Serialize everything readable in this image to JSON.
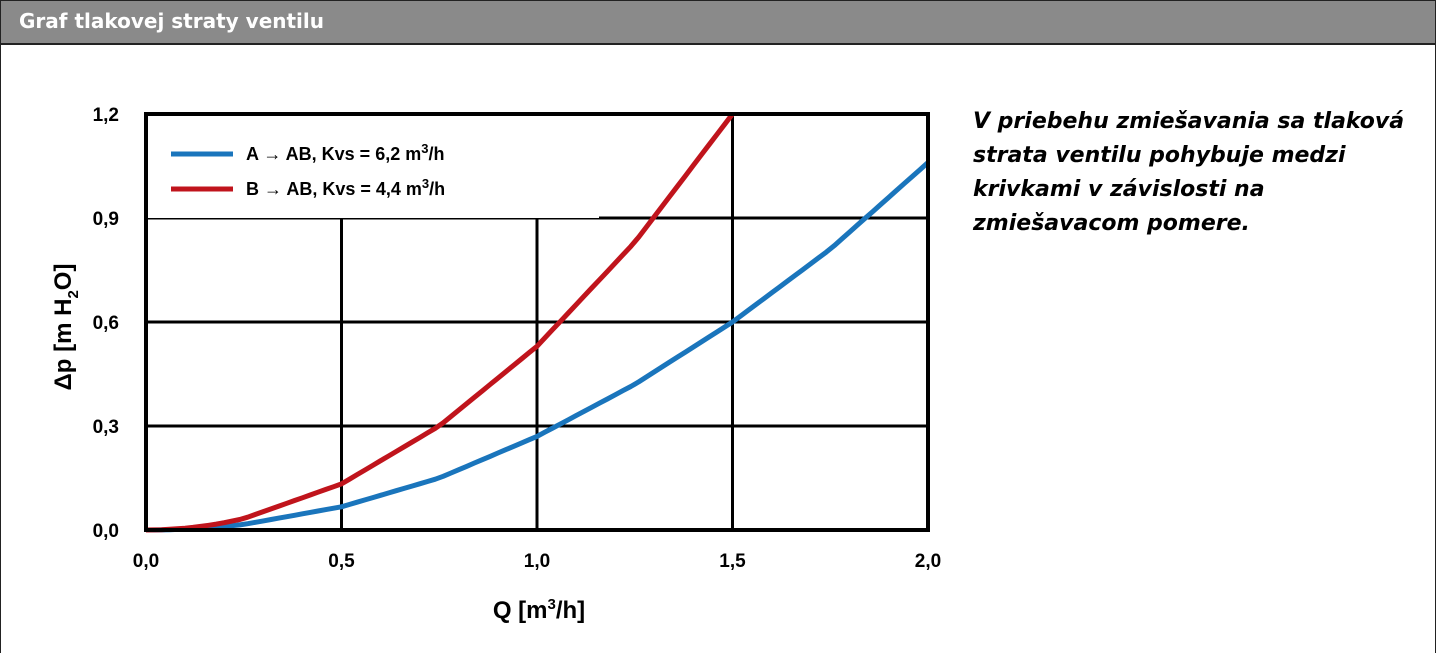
{
  "header": {
    "title": "Graf tlakovej straty ventilu"
  },
  "note": {
    "text": "V priebehu zmiešavania sa tlaková strata ventilu pohybuje medzi krivkami v závislosti na zmiešavacom pomere."
  },
  "colors": {
    "series_a": "#1a75bc",
    "series_b": "#c0141c",
    "header_bg": "#8a8a8a"
  },
  "chart_data": {
    "type": "line",
    "xlabel": {
      "main": "Q [m",
      "sup": "3",
      "end": "/h]"
    },
    "ylabel": {
      "main": "Δp [m H",
      "sub": "2",
      "end": "O]"
    },
    "xlim": [
      0,
      2
    ],
    "ylim": [
      0,
      1.2
    ],
    "x_ticks": [
      "0,0",
      "0,5",
      "1,0",
      "1,5",
      "2,0"
    ],
    "x_tick_values": [
      0,
      0.5,
      1.0,
      1.5,
      2.0
    ],
    "y_ticks": [
      "0,0",
      "0,3",
      "0,6",
      "0,9",
      "1,2"
    ],
    "y_tick_values": [
      0,
      0.3,
      0.6,
      0.9,
      1.2
    ],
    "grid": true,
    "legend_position": "top-left",
    "series": [
      {
        "name": "A → AB, Kvs = 6,2 m³/h",
        "legend": {
          "main": "A → AB, Kvs = 6,2 m",
          "sup": "3",
          "end": "/h"
        },
        "kvs": 6.2,
        "color": "#1a75bc",
        "x": [
          0,
          0.25,
          0.5,
          0.75,
          1.0,
          1.25,
          1.5,
          1.75,
          2.0
        ],
        "y": [
          0,
          0.016,
          0.067,
          0.15,
          0.27,
          0.42,
          0.6,
          0.81,
          1.06
        ]
      },
      {
        "name": "B → AB, Kvs = 4,4 m³/h",
        "legend": {
          "main": "B → AB, Kvs = 4,4 m",
          "sup": "3",
          "end": "/h"
        },
        "kvs": 4.4,
        "color": "#c0141c",
        "x": [
          0,
          0.25,
          0.5,
          0.75,
          1.0,
          1.25,
          1.5
        ],
        "y": [
          0,
          0.033,
          0.133,
          0.3,
          0.53,
          0.83,
          1.2
        ]
      }
    ]
  }
}
